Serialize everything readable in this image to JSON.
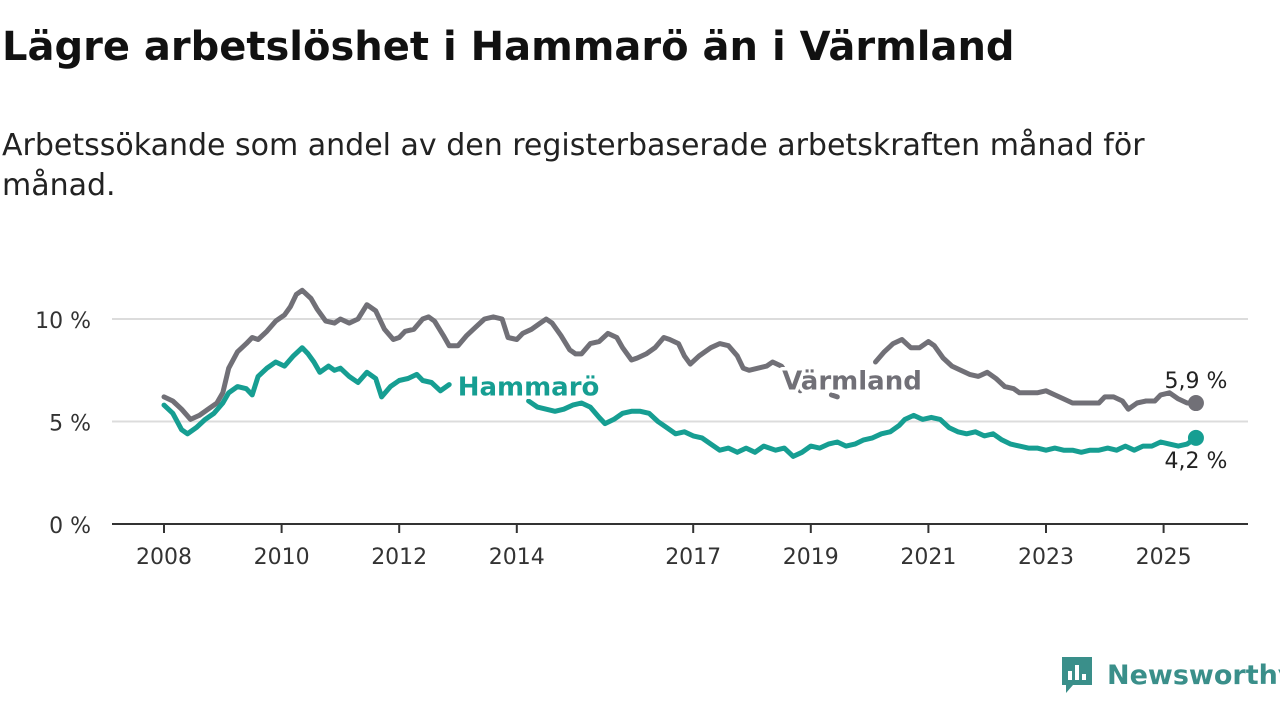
{
  "title": "Lägre arbetslöshet i Hammarö än i Värmland",
  "subtitle": "Arbetssökande som andel av den registerbaserade arbetskraften månad för månad.",
  "brand": {
    "name": "Newsworthy",
    "icon": "newsworthy-logo-icon",
    "color": "#3a8f8a"
  },
  "chart_data": {
    "type": "line",
    "x_unit": "year",
    "xlim": [
      2008,
      2026.5
    ],
    "ylim": [
      0,
      12
    ],
    "yticks": [
      0,
      5,
      10
    ],
    "ytick_labels": [
      "0 %",
      "5 %",
      "10 %"
    ],
    "xticks": [
      2008,
      2010,
      2012,
      2014,
      2017,
      2019,
      2021,
      2023,
      2025
    ],
    "xtick_labels": [
      "2008",
      "2010",
      "2012",
      "2014",
      "2017",
      "2019",
      "2021",
      "2023",
      "2025"
    ],
    "grid": true,
    "series": [
      {
        "name": "Värmland",
        "color": "#717077",
        "end_label": "5,9 %",
        "segments": [
          [
            [
              2008.0,
              6.2
            ],
            [
              2008.15,
              6.0
            ],
            [
              2008.3,
              5.6
            ],
            [
              2008.45,
              5.1
            ],
            [
              2008.6,
              5.3
            ],
            [
              2008.75,
              5.6
            ],
            [
              2008.9,
              5.9
            ],
            [
              2009.0,
              6.4
            ],
            [
              2009.1,
              7.6
            ],
            [
              2009.25,
              8.4
            ],
            [
              2009.4,
              8.8
            ],
            [
              2009.5,
              9.1
            ],
            [
              2009.6,
              9.0
            ],
            [
              2009.75,
              9.4
            ],
            [
              2009.9,
              9.9
            ],
            [
              2010.05,
              10.2
            ],
            [
              2010.15,
              10.6
            ],
            [
              2010.25,
              11.2
            ],
            [
              2010.35,
              11.4
            ],
            [
              2010.5,
              11.0
            ],
            [
              2010.6,
              10.5
            ],
            [
              2010.75,
              9.9
            ],
            [
              2010.9,
              9.8
            ],
            [
              2011.0,
              10.0
            ],
            [
              2011.15,
              9.8
            ],
            [
              2011.3,
              10.0
            ],
            [
              2011.45,
              10.7
            ],
            [
              2011.6,
              10.4
            ],
            [
              2011.75,
              9.5
            ],
            [
              2011.9,
              9.0
            ],
            [
              2012.0,
              9.1
            ],
            [
              2012.1,
              9.4
            ],
            [
              2012.25,
              9.5
            ],
            [
              2012.4,
              10.0
            ],
            [
              2012.5,
              10.1
            ],
            [
              2012.6,
              9.9
            ],
            [
              2012.75,
              9.2
            ],
            [
              2012.85,
              8.7
            ],
            [
              2013.0,
              8.7
            ],
            [
              2013.15,
              9.2
            ],
            [
              2013.3,
              9.6
            ],
            [
              2013.45,
              10.0
            ],
            [
              2013.6,
              10.1
            ],
            [
              2013.75,
              10.0
            ],
            [
              2013.85,
              9.1
            ],
            [
              2014.0,
              9.0
            ],
            [
              2014.1,
              9.3
            ],
            [
              2014.25,
              9.5
            ],
            [
              2014.4,
              9.8
            ],
            [
              2014.5,
              10.0
            ],
            [
              2014.6,
              9.8
            ],
            [
              2014.75,
              9.2
            ],
            [
              2014.9,
              8.5
            ],
            [
              2015.0,
              8.3
            ],
            [
              2015.1,
              8.3
            ],
            [
              2015.25,
              8.8
            ],
            [
              2015.4,
              8.9
            ],
            [
              2015.55,
              9.3
            ],
            [
              2015.7,
              9.1
            ],
            [
              2015.8,
              8.6
            ],
            [
              2015.95,
              8.0
            ],
            [
              2016.05,
              8.1
            ],
            [
              2016.2,
              8.3
            ],
            [
              2016.35,
              8.6
            ],
            [
              2016.5,
              9.1
            ],
            [
              2016.6,
              9.0
            ],
            [
              2016.75,
              8.8
            ],
            [
              2016.85,
              8.2
            ],
            [
              2016.95,
              7.8
            ],
            [
              2017.1,
              8.2
            ],
            [
              2017.3,
              8.6
            ],
            [
              2017.45,
              8.8
            ],
            [
              2017.6,
              8.7
            ],
            [
              2017.75,
              8.2
            ],
            [
              2017.85,
              7.6
            ],
            [
              2017.95,
              7.5
            ],
            [
              2018.1,
              7.6
            ],
            [
              2018.25,
              7.7
            ],
            [
              2018.35,
              7.9
            ],
            [
              2018.5,
              7.7
            ],
            [
              2018.6,
              7.3
            ],
            [
              2018.75,
              6.8
            ],
            [
              2018.82,
              6.5
            ]
          ],
          [
            [
              2019.35,
              6.3
            ],
            [
              2019.45,
              6.2
            ]
          ],
          [
            [
              2020.1,
              7.9
            ],
            [
              2020.25,
              8.4
            ],
            [
              2020.4,
              8.8
            ],
            [
              2020.55,
              9.0
            ],
            [
              2020.7,
              8.6
            ],
            [
              2020.85,
              8.6
            ],
            [
              2021.0,
              8.9
            ],
            [
              2021.1,
              8.7
            ],
            [
              2021.25,
              8.1
            ],
            [
              2021.4,
              7.7
            ],
            [
              2021.55,
              7.5
            ],
            [
              2021.7,
              7.3
            ],
            [
              2021.85,
              7.2
            ],
            [
              2022.0,
              7.4
            ],
            [
              2022.15,
              7.1
            ],
            [
              2022.3,
              6.7
            ],
            [
              2022.45,
              6.6
            ],
            [
              2022.55,
              6.4
            ],
            [
              2022.7,
              6.4
            ],
            [
              2022.85,
              6.4
            ],
            [
              2023.0,
              6.5
            ],
            [
              2023.15,
              6.3
            ],
            [
              2023.3,
              6.1
            ],
            [
              2023.45,
              5.9
            ],
            [
              2023.6,
              5.9
            ],
            [
              2023.75,
              5.9
            ],
            [
              2023.9,
              5.9
            ],
            [
              2024.0,
              6.2
            ],
            [
              2024.15,
              6.2
            ],
            [
              2024.3,
              6.0
            ],
            [
              2024.4,
              5.6
            ],
            [
              2024.55,
              5.9
            ],
            [
              2024.7,
              6.0
            ],
            [
              2024.85,
              6.0
            ],
            [
              2024.95,
              6.3
            ],
            [
              2025.1,
              6.4
            ],
            [
              2025.25,
              6.1
            ],
            [
              2025.4,
              5.9
            ],
            [
              2025.55,
              5.9
            ]
          ]
        ]
      },
      {
        "name": "Hammarö",
        "color": "#169e92",
        "end_label": "4,2 %",
        "segments": [
          [
            [
              2008.0,
              5.8
            ],
            [
              2008.15,
              5.4
            ],
            [
              2008.3,
              4.6
            ],
            [
              2008.4,
              4.4
            ],
            [
              2008.55,
              4.7
            ],
            [
              2008.7,
              5.1
            ],
            [
              2008.85,
              5.4
            ],
            [
              2009.0,
              5.9
            ],
            [
              2009.1,
              6.4
            ],
            [
              2009.25,
              6.7
            ],
            [
              2009.4,
              6.6
            ],
            [
              2009.5,
              6.3
            ],
            [
              2009.6,
              7.2
            ],
            [
              2009.75,
              7.6
            ],
            [
              2009.9,
              7.9
            ],
            [
              2010.05,
              7.7
            ],
            [
              2010.2,
              8.2
            ],
            [
              2010.35,
              8.6
            ],
            [
              2010.45,
              8.3
            ],
            [
              2010.55,
              7.9
            ],
            [
              2010.65,
              7.4
            ],
            [
              2010.8,
              7.7
            ],
            [
              2010.9,
              7.5
            ],
            [
              2011.0,
              7.6
            ],
            [
              2011.15,
              7.2
            ],
            [
              2011.3,
              6.9
            ],
            [
              2011.45,
              7.4
            ],
            [
              2011.6,
              7.1
            ],
            [
              2011.7,
              6.2
            ],
            [
              2011.85,
              6.7
            ],
            [
              2012.0,
              7.0
            ],
            [
              2012.15,
              7.1
            ],
            [
              2012.3,
              7.3
            ],
            [
              2012.4,
              7.0
            ],
            [
              2012.55,
              6.9
            ],
            [
              2012.7,
              6.5
            ],
            [
              2012.85,
              6.8
            ]
          ],
          [
            [
              2014.2,
              6.0
            ],
            [
              2014.35,
              5.7
            ],
            [
              2014.5,
              5.6
            ],
            [
              2014.65,
              5.5
            ],
            [
              2014.8,
              5.6
            ],
            [
              2014.95,
              5.8
            ],
            [
              2015.1,
              5.9
            ],
            [
              2015.25,
              5.7
            ],
            [
              2015.4,
              5.2
            ],
            [
              2015.5,
              4.9
            ],
            [
              2015.65,
              5.1
            ],
            [
              2015.8,
              5.4
            ],
            [
              2015.95,
              5.5
            ],
            [
              2016.1,
              5.5
            ],
            [
              2016.25,
              5.4
            ],
            [
              2016.4,
              5.0
            ],
            [
              2016.55,
              4.7
            ],
            [
              2016.7,
              4.4
            ],
            [
              2016.85,
              4.5
            ],
            [
              2017.0,
              4.3
            ],
            [
              2017.15,
              4.2
            ],
            [
              2017.3,
              3.9
            ],
            [
              2017.45,
              3.6
            ],
            [
              2017.6,
              3.7
            ],
            [
              2017.75,
              3.5
            ],
            [
              2017.9,
              3.7
            ],
            [
              2018.05,
              3.5
            ],
            [
              2018.2,
              3.8
            ],
            [
              2018.4,
              3.6
            ],
            [
              2018.55,
              3.7
            ],
            [
              2018.7,
              3.3
            ],
            [
              2018.85,
              3.5
            ],
            [
              2019.0,
              3.8
            ],
            [
              2019.15,
              3.7
            ],
            [
              2019.3,
              3.9
            ],
            [
              2019.45,
              4.0
            ],
            [
              2019.6,
              3.8
            ],
            [
              2019.75,
              3.9
            ],
            [
              2019.9,
              4.1
            ],
            [
              2020.05,
              4.2
            ],
            [
              2020.2,
              4.4
            ],
            [
              2020.35,
              4.5
            ],
            [
              2020.5,
              4.8
            ],
            [
              2020.6,
              5.1
            ],
            [
              2020.75,
              5.3
            ],
            [
              2020.9,
              5.1
            ],
            [
              2021.05,
              5.2
            ],
            [
              2021.2,
              5.1
            ],
            [
              2021.35,
              4.7
            ],
            [
              2021.5,
              4.5
            ],
            [
              2021.65,
              4.4
            ],
            [
              2021.8,
              4.5
            ],
            [
              2021.95,
              4.3
            ],
            [
              2022.1,
              4.4
            ],
            [
              2022.25,
              4.1
            ],
            [
              2022.4,
              3.9
            ],
            [
              2022.55,
              3.8
            ],
            [
              2022.7,
              3.7
            ],
            [
              2022.85,
              3.7
            ],
            [
              2023.0,
              3.6
            ],
            [
              2023.15,
              3.7
            ],
            [
              2023.3,
              3.6
            ],
            [
              2023.45,
              3.6
            ],
            [
              2023.6,
              3.5
            ],
            [
              2023.75,
              3.6
            ],
            [
              2023.9,
              3.6
            ],
            [
              2024.05,
              3.7
            ],
            [
              2024.2,
              3.6
            ],
            [
              2024.35,
              3.8
            ],
            [
              2024.5,
              3.6
            ],
            [
              2024.65,
              3.8
            ],
            [
              2024.8,
              3.8
            ],
            [
              2024.95,
              4.0
            ],
            [
              2025.1,
              3.9
            ],
            [
              2025.25,
              3.8
            ],
            [
              2025.4,
              3.9
            ],
            [
              2025.55,
              4.2
            ]
          ]
        ]
      }
    ],
    "annotations": [
      {
        "text": "Hammarö",
        "series": "Hammarö",
        "x": 2014.2,
        "y": 6.7
      },
      {
        "text": "Värmland",
        "series": "Värmland",
        "x": 2019.7,
        "y": 7.0
      }
    ]
  }
}
